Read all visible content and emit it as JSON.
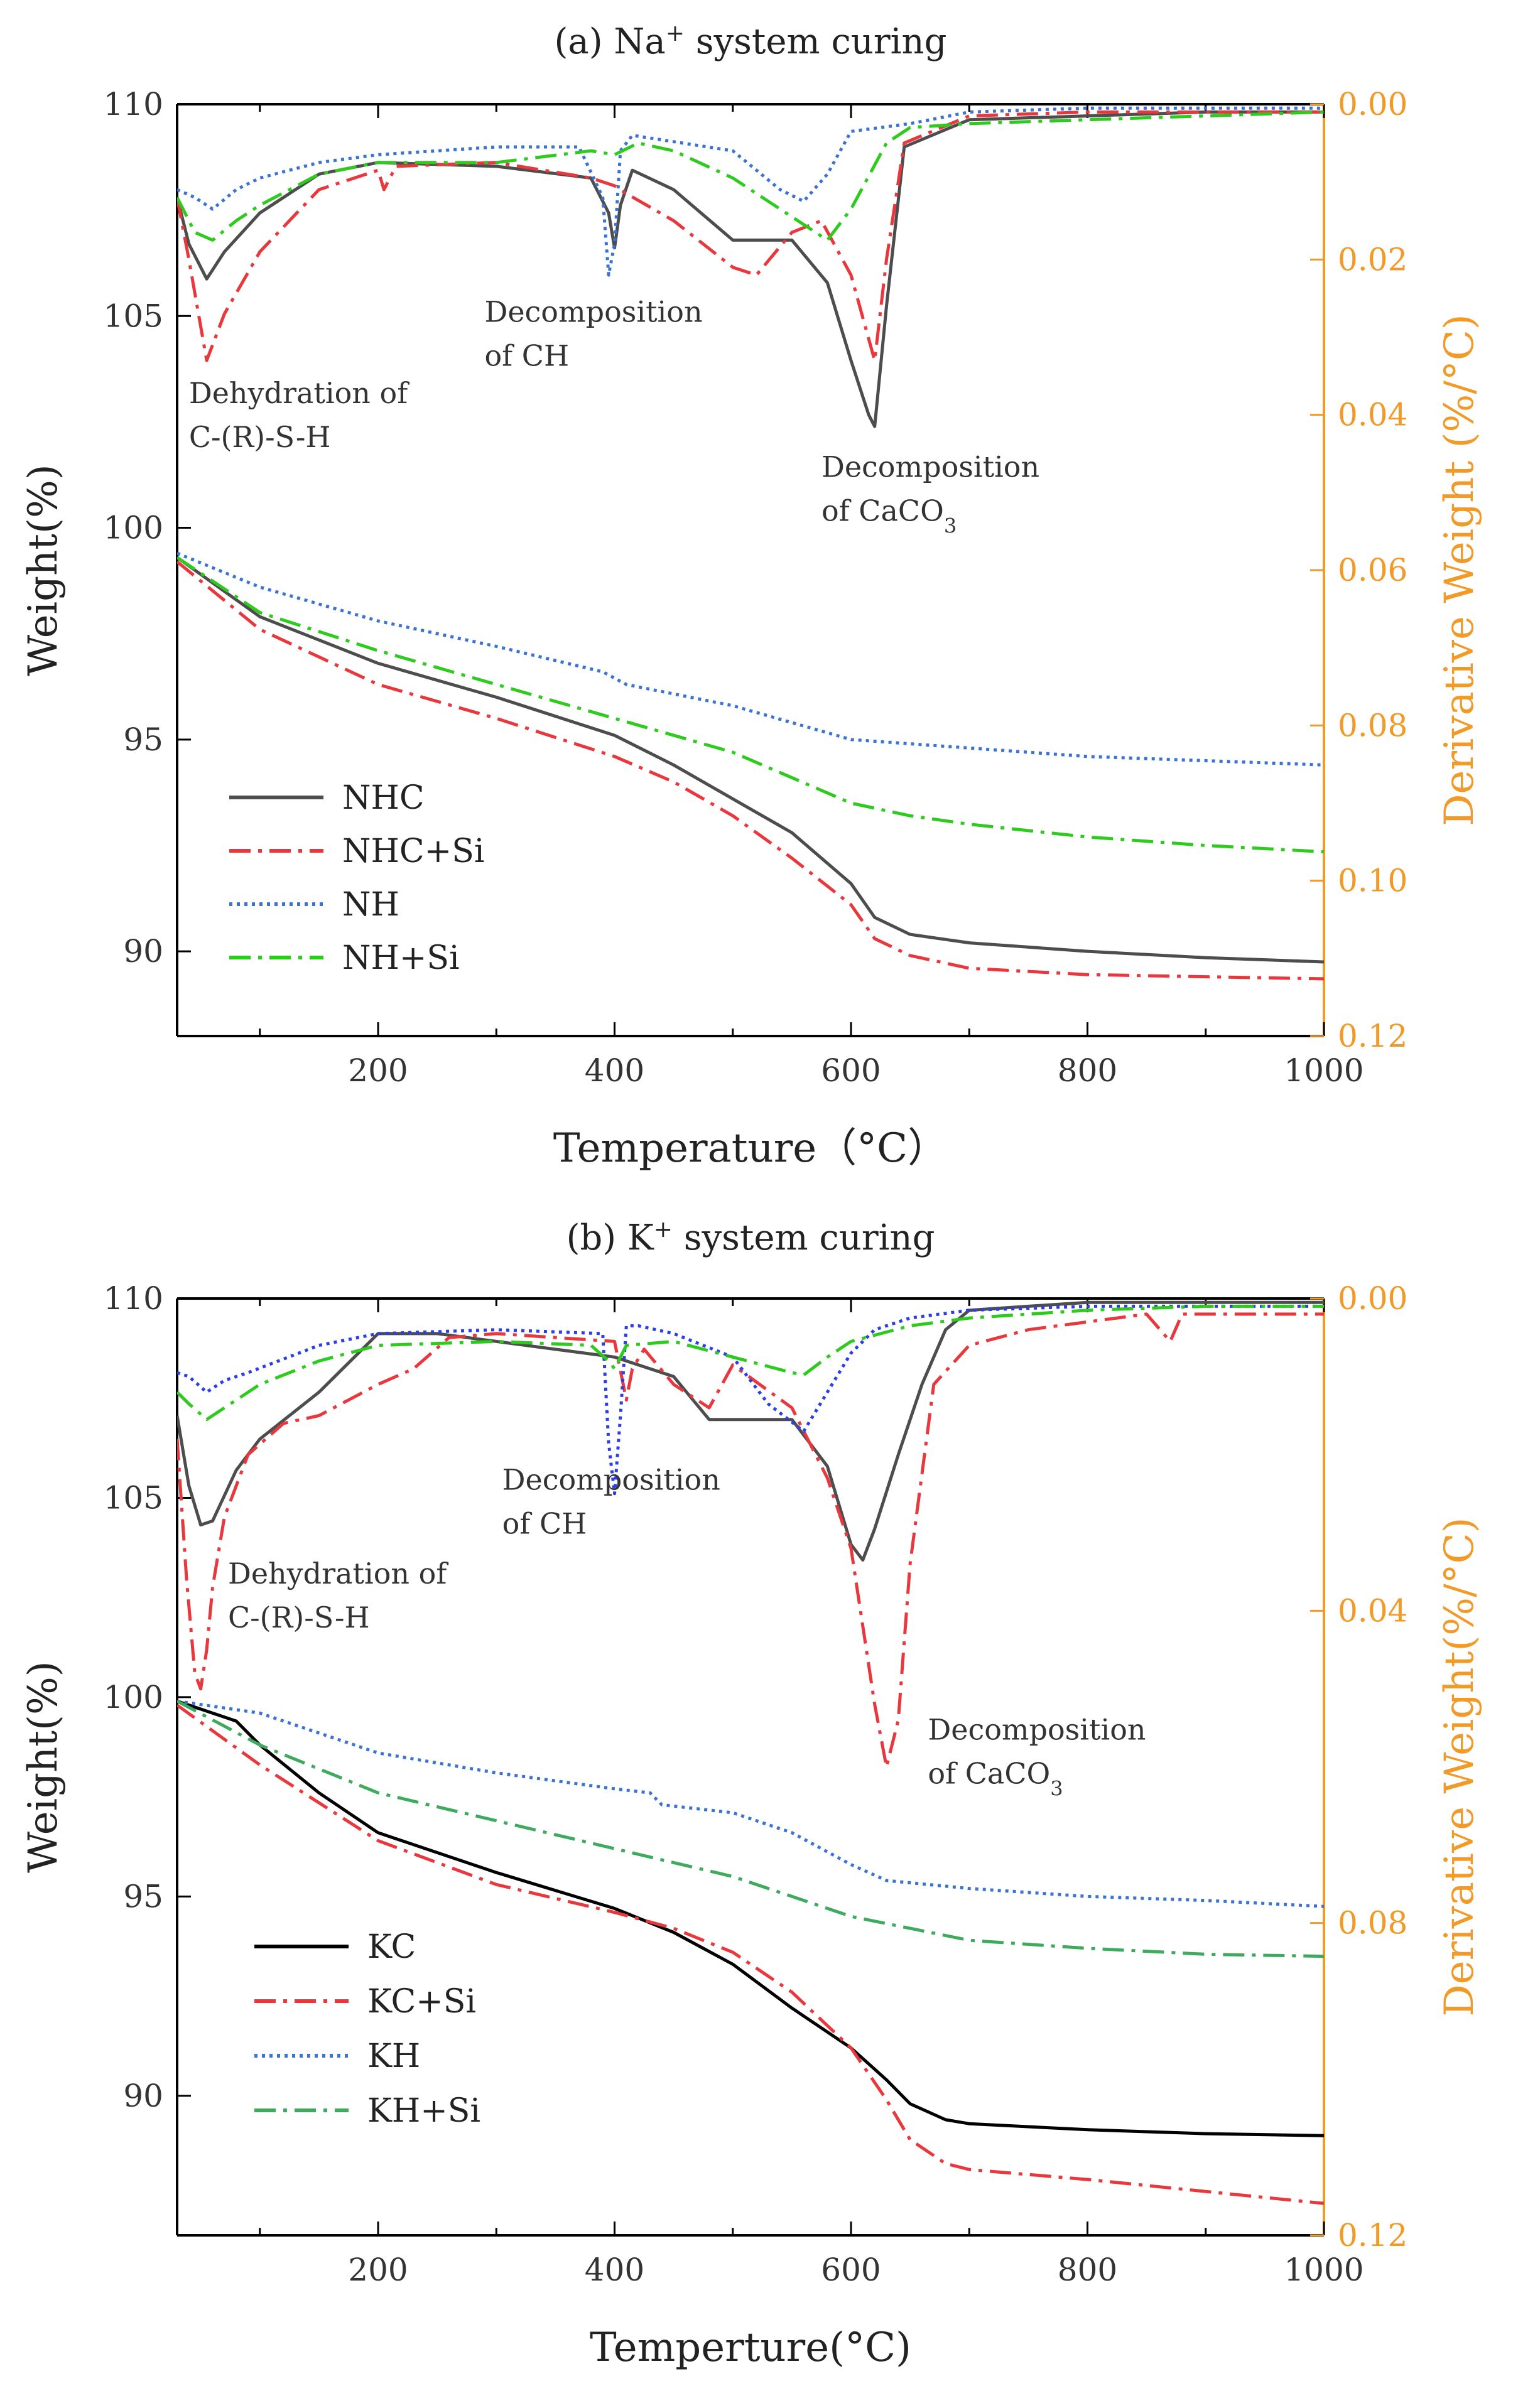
{
  "chart_data": [
    {
      "type": "line",
      "title": "(a) Na⁺ system curing",
      "title_main": "(a) Na",
      "title_sup": "+",
      "title_rest": " system curing",
      "xlabel": "Temperature（°C）",
      "ylabel_left": "Weight(%)",
      "ylabel_right": "Derivative Weight (%/°C)",
      "xlim": [
        30,
        1000
      ],
      "ylim_left": [
        88,
        110
      ],
      "ylim_right": [
        0.12,
        0.0
      ],
      "x_ticks": [
        200,
        400,
        600,
        800,
        1000
      ],
      "y_left_ticks": [
        90,
        95,
        100,
        105,
        110
      ],
      "y_right_ticks": [
        "0.00",
        "0.02",
        "0.04",
        "0.06",
        "0.08",
        "0.10",
        "0.12"
      ],
      "y_right_tick_values": [
        0.0,
        0.02,
        0.04,
        0.06,
        0.08,
        0.1,
        0.12
      ],
      "grid": false,
      "legend_position": "lower-left",
      "colors": {
        "axis_left": "#000000",
        "axis_right": "#f29a28"
      },
      "series": [
        {
          "name": "NHC",
          "color": "#4d4d4d",
          "dash": "solid",
          "axis": "left",
          "x": [
            30,
            100,
            200,
            300,
            400,
            450,
            500,
            550,
            600,
            620,
            650,
            700,
            800,
            900,
            1000
          ],
          "values": [
            99.3,
            97.9,
            96.8,
            96.0,
            95.1,
            94.4,
            93.6,
            92.8,
            91.6,
            90.8,
            90.4,
            90.2,
            90.0,
            89.85,
            89.75
          ]
        },
        {
          "name": "NHC+Si",
          "color": "#e8373d",
          "dash": "dashdot",
          "axis": "left",
          "x": [
            30,
            100,
            200,
            300,
            400,
            450,
            500,
            550,
            600,
            620,
            650,
            700,
            800,
            900,
            1000
          ],
          "values": [
            99.2,
            97.6,
            96.3,
            95.5,
            94.6,
            94.0,
            93.2,
            92.2,
            91.1,
            90.3,
            89.9,
            89.6,
            89.45,
            89.4,
            89.35
          ]
        },
        {
          "name": "NH",
          "color": "#3b73d4",
          "dash": "dotted",
          "axis": "left",
          "x": [
            30,
            100,
            200,
            300,
            390,
            410,
            500,
            600,
            700,
            800,
            900,
            1000
          ],
          "values": [
            99.4,
            98.6,
            97.8,
            97.2,
            96.6,
            96.3,
            95.8,
            95.0,
            94.8,
            94.6,
            94.5,
            94.4
          ]
        },
        {
          "name": "NH+Si",
          "color": "#2ecb1e",
          "dash": "dashdot",
          "axis": "left",
          "x": [
            30,
            100,
            200,
            300,
            400,
            500,
            600,
            650,
            700,
            800,
            900,
            1000
          ],
          "values": [
            99.3,
            98.0,
            97.1,
            96.3,
            95.5,
            94.7,
            93.5,
            93.2,
            93.0,
            92.7,
            92.5,
            92.35
          ]
        },
        {
          "name": "NHC DTG",
          "color": "#4d4d4d",
          "dash": "solid",
          "axis": "right",
          "x": [
            30,
            40,
            55,
            70,
            100,
            150,
            200,
            300,
            380,
            395,
            400,
            405,
            415,
            450,
            500,
            550,
            580,
            600,
            615,
            620,
            630,
            645,
            700,
            800,
            900,
            1000
          ],
          "values": [
            0.012,
            0.018,
            0.0225,
            0.019,
            0.014,
            0.009,
            0.0075,
            0.008,
            0.0095,
            0.014,
            0.0185,
            0.013,
            0.0085,
            0.011,
            0.0175,
            0.0175,
            0.023,
            0.033,
            0.04,
            0.0415,
            0.026,
            0.0055,
            0.002,
            0.0015,
            0.001,
            0.001
          ]
        },
        {
          "name": "NHC+Si DTG",
          "color": "#e8373d",
          "dash": "dashdot",
          "axis": "right",
          "x": [
            30,
            40,
            55,
            70,
            100,
            150,
            200,
            205,
            215,
            300,
            380,
            400,
            410,
            450,
            500,
            520,
            550,
            575,
            600,
            620,
            630,
            645,
            700,
            800,
            900,
            1000
          ],
          "values": [
            0.012,
            0.02,
            0.033,
            0.027,
            0.019,
            0.011,
            0.0085,
            0.011,
            0.008,
            0.0075,
            0.0095,
            0.0105,
            0.0115,
            0.015,
            0.021,
            0.022,
            0.0165,
            0.015,
            0.022,
            0.033,
            0.02,
            0.005,
            0.0015,
            0.001,
            0.001,
            0.001
          ]
        },
        {
          "name": "NH DTG",
          "color": "#3b73d4",
          "dash": "dotted",
          "axis": "right",
          "x": [
            30,
            45,
            60,
            80,
            100,
            150,
            200,
            300,
            370,
            390,
            395,
            400,
            405,
            415,
            500,
            540,
            560,
            580,
            600,
            650,
            700,
            800,
            900,
            1000
          ],
          "values": [
            0.011,
            0.012,
            0.0135,
            0.011,
            0.0095,
            0.0075,
            0.0065,
            0.0055,
            0.0055,
            0.012,
            0.022,
            0.018,
            0.006,
            0.004,
            0.006,
            0.011,
            0.0125,
            0.009,
            0.0035,
            0.0025,
            0.001,
            0.0005,
            0.0005,
            0.0005
          ]
        },
        {
          "name": "NH+Si DTG",
          "color": "#2ecb1e",
          "dash": "dashdot",
          "axis": "right",
          "x": [
            30,
            45,
            60,
            80,
            100,
            150,
            200,
            300,
            380,
            400,
            420,
            450,
            500,
            550,
            580,
            600,
            630,
            650,
            700,
            800,
            900,
            1000
          ],
          "values": [
            0.012,
            0.0165,
            0.0175,
            0.015,
            0.013,
            0.009,
            0.0075,
            0.0075,
            0.006,
            0.0065,
            0.005,
            0.006,
            0.0095,
            0.0145,
            0.0175,
            0.0135,
            0.005,
            0.003,
            0.0025,
            0.002,
            0.0015,
            0.001
          ]
        }
      ],
      "annotations": [
        {
          "line1": "Dehydration of",
          "line2": "C-(R)-S-H",
          "x": 40,
          "y_right": 0.0385
        },
        {
          "line1": "Decomposition",
          "line2": "of  CH",
          "x": 290,
          "y_right": 0.028
        },
        {
          "line1": "Decomposition",
          "line2_main": "of  CaCO",
          "line2_sub": "3",
          "x": 575,
          "y_right": 0.048
        }
      ]
    },
    {
      "type": "line",
      "title": "(b) K⁺ system curing",
      "title_main": "(b) K",
      "title_sup": "+",
      "title_rest": " system curing",
      "xlabel": "Temperture(°C)",
      "ylabel_left": "Weight(%)",
      "ylabel_right": "Derivative Weight(%/°C)",
      "xlim": [
        30,
        1000
      ],
      "ylim_left": [
        86.5,
        110
      ],
      "ylim_right": [
        0.12,
        0.0
      ],
      "x_ticks": [
        200,
        400,
        600,
        800,
        1000
      ],
      "y_left_ticks": [
        90,
        95,
        100,
        105,
        110
      ],
      "y_right_ticks": [
        "0.00",
        "0.04",
        "0.08",
        "0.12"
      ],
      "y_right_tick_values": [
        0.0,
        0.04,
        0.08,
        0.12
      ],
      "grid": false,
      "legend_position": "lower-left",
      "colors": {
        "axis_left": "#000000",
        "axis_right": "#f29a28"
      },
      "series": [
        {
          "name": "KC",
          "color": "#000000",
          "dash": "solid",
          "axis": "left",
          "x": [
            30,
            80,
            100,
            150,
            200,
            300,
            400,
            450,
            500,
            550,
            600,
            630,
            650,
            680,
            700,
            800,
            900,
            1000
          ],
          "values": [
            99.9,
            99.4,
            98.8,
            97.6,
            96.6,
            95.6,
            94.7,
            94.1,
            93.3,
            92.2,
            91.2,
            90.4,
            89.8,
            89.4,
            89.3,
            89.15,
            89.05,
            89.0
          ]
        },
        {
          "name": "KC+Si",
          "color": "#e8373d",
          "dash": "dashdot",
          "axis": "left",
          "x": [
            30,
            100,
            200,
            300,
            400,
            450,
            500,
            550,
            600,
            630,
            650,
            680,
            700,
            800,
            900,
            1000
          ],
          "values": [
            99.8,
            98.3,
            96.4,
            95.3,
            94.6,
            94.2,
            93.6,
            92.6,
            91.2,
            89.9,
            88.9,
            88.3,
            88.15,
            87.9,
            87.6,
            87.3
          ]
        },
        {
          "name": "KH",
          "color": "#3b73d4",
          "dash": "dotted",
          "axis": "left",
          "x": [
            30,
            100,
            200,
            300,
            400,
            430,
            440,
            500,
            550,
            600,
            630,
            700,
            800,
            900,
            1000
          ],
          "values": [
            99.9,
            99.6,
            98.6,
            98.1,
            97.7,
            97.6,
            97.3,
            97.1,
            96.6,
            95.8,
            95.4,
            95.2,
            95.0,
            94.9,
            94.75
          ]
        },
        {
          "name": "KH+Si",
          "color": "#3daa5e",
          "dash": "dashdot",
          "axis": "left",
          "x": [
            30,
            100,
            200,
            300,
            400,
            500,
            550,
            600,
            650,
            700,
            800,
            900,
            1000
          ],
          "values": [
            99.9,
            98.8,
            97.6,
            96.9,
            96.2,
            95.5,
            95.0,
            94.5,
            94.2,
            93.9,
            93.7,
            93.55,
            93.5
          ]
        },
        {
          "name": "KC DTG",
          "color": "#4d4d4d",
          "dash": "solid",
          "axis": "right",
          "x": [
            30,
            40,
            50,
            60,
            80,
            100,
            150,
            200,
            250,
            300,
            400,
            450,
            480,
            550,
            580,
            600,
            610,
            620,
            640,
            660,
            680,
            700,
            750,
            800,
            900,
            1000
          ],
          "values": [
            0.015,
            0.024,
            0.029,
            0.0285,
            0.022,
            0.018,
            0.012,
            0.0045,
            0.0045,
            0.0055,
            0.0075,
            0.01,
            0.0155,
            0.0155,
            0.0215,
            0.0315,
            0.0335,
            0.0295,
            0.02,
            0.011,
            0.004,
            0.0015,
            0.001,
            0.0005,
            0.0005,
            0.0005
          ]
        },
        {
          "name": "KC+Si DTG",
          "color": "#e8373d",
          "dash": "dashdot",
          "axis": "right",
          "x": [
            30,
            38,
            45,
            50,
            55,
            60,
            70,
            90,
            120,
            150,
            200,
            230,
            260,
            300,
            400,
            410,
            415,
            425,
            450,
            480,
            500,
            550,
            580,
            600,
            620,
            630,
            640,
            650,
            670,
            700,
            750,
            800,
            850,
            870,
            880,
            900,
            1000
          ],
          "values": [
            0.018,
            0.036,
            0.048,
            0.05,
            0.045,
            0.037,
            0.028,
            0.02,
            0.016,
            0.015,
            0.011,
            0.009,
            0.005,
            0.0045,
            0.0055,
            0.013,
            0.009,
            0.0065,
            0.011,
            0.014,
            0.0085,
            0.014,
            0.023,
            0.032,
            0.052,
            0.06,
            0.054,
            0.034,
            0.011,
            0.006,
            0.004,
            0.003,
            0.002,
            0.0055,
            0.002,
            0.002,
            0.002
          ]
        },
        {
          "name": "KH DTG",
          "color": "#2b3ee8",
          "dash": "dotted",
          "axis": "right",
          "x": [
            30,
            40,
            55,
            70,
            90,
            150,
            200,
            300,
            390,
            395,
            400,
            405,
            410,
            420,
            450,
            500,
            530,
            560,
            570,
            600,
            620,
            650,
            700,
            800,
            900,
            1000
          ],
          "values": [
            0.0095,
            0.01,
            0.012,
            0.0105,
            0.0095,
            0.006,
            0.0045,
            0.004,
            0.0045,
            0.0185,
            0.025,
            0.015,
            0.0035,
            0.0035,
            0.0045,
            0.0075,
            0.0135,
            0.017,
            0.0145,
            0.007,
            0.004,
            0.0025,
            0.0015,
            0.001,
            0.001,
            0.001
          ]
        },
        {
          "name": "KH+Si DTG",
          "color": "#2ecb1e",
          "dash": "dashdot",
          "axis": "right",
          "x": [
            30,
            40,
            55,
            70,
            100,
            150,
            200,
            300,
            380,
            395,
            400,
            410,
            450,
            500,
            550,
            560,
            580,
            600,
            650,
            700,
            800,
            900,
            1000
          ],
          "values": [
            0.012,
            0.0135,
            0.0155,
            0.014,
            0.011,
            0.008,
            0.006,
            0.0055,
            0.006,
            0.008,
            0.009,
            0.006,
            0.0055,
            0.0075,
            0.0095,
            0.0098,
            0.0075,
            0.0055,
            0.0035,
            0.0025,
            0.0015,
            0.001,
            0.001
          ]
        }
      ],
      "annotations": [
        {
          "line1": "Dehydration of",
          "line2": "C-(R)-S-H",
          "x": 73,
          "y_right": 0.0365
        },
        {
          "line1": "Decomposition",
          "line2": "of  CH",
          "x": 305,
          "y_right": 0.0245
        },
        {
          "line1": "Decomposition",
          "line2_main": "of  CaCO",
          "line2_sub": "3",
          "x": 665,
          "y_right": 0.0565
        }
      ]
    }
  ]
}
